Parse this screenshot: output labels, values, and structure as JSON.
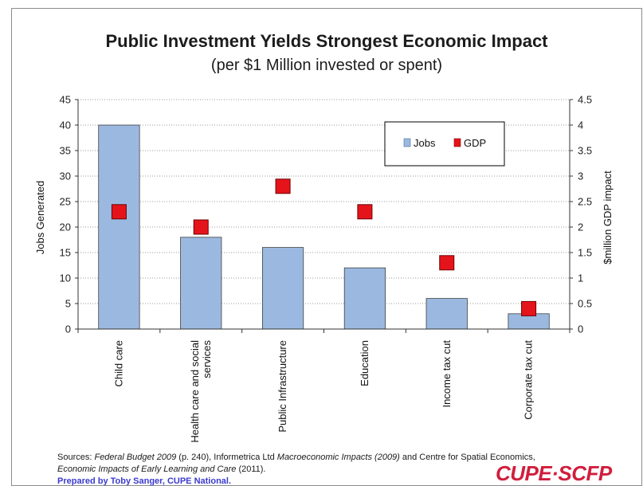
{
  "chart_data": {
    "type": "bar",
    "title": "Public Investment Yields Strongest Economic Impact",
    "subtitle": "(per $1 Million invested or spent)",
    "ylabel": "Jobs Generated",
    "y2label": "$million GDP impact",
    "categories": [
      "Child care",
      "Health care and social services",
      "Public Infrastructure",
      "Education",
      "Income tax cut",
      "Corporate tax cut"
    ],
    "category_lines": [
      [
        "Child care"
      ],
      [
        "Health care and social",
        "services"
      ],
      [
        "Public Infrastructure"
      ],
      [
        "Education"
      ],
      [
        "Income tax cut"
      ],
      [
        "Corporate tax cut"
      ]
    ],
    "series": [
      {
        "name": "Jobs",
        "type": "bar",
        "axis": "left",
        "color": "#9bb9e0",
        "values": [
          40,
          18,
          16,
          12,
          6,
          3
        ]
      },
      {
        "name": "GDP",
        "type": "scatter",
        "axis": "right",
        "color": "#e5141b",
        "values": [
          2.3,
          2.0,
          2.8,
          2.3,
          1.3,
          0.4
        ]
      }
    ],
    "ylim": [
      0,
      45
    ],
    "y2lim": [
      0,
      4.5
    ],
    "yticks": [
      "0",
      "5",
      "10",
      "15",
      "20",
      "25",
      "30",
      "35",
      "40",
      "45"
    ],
    "y2ticks": [
      "0",
      "0.5",
      "1",
      "1.5",
      "2",
      "2.5",
      "3",
      "3.5",
      "4",
      "4.5"
    ],
    "grid": "horizontal dotted",
    "legend_position": "top-right"
  },
  "footer": {
    "sources_prefix": "Sources: ",
    "src1": "Federal Budget 2009",
    "src1_tail": " (p. 240), Informetrica Ltd ",
    "src2": "Macroeconomic Impacts  (2009)",
    "src2_tail": " and Centre for Spatial Economics, ",
    "src3": "Economic Impacts of Early Learning and Care",
    "src3_tail": " (2011).",
    "prepared": "Prepared by Toby Sanger, CUPE National."
  },
  "logo_text": "CUPE·SCFP"
}
